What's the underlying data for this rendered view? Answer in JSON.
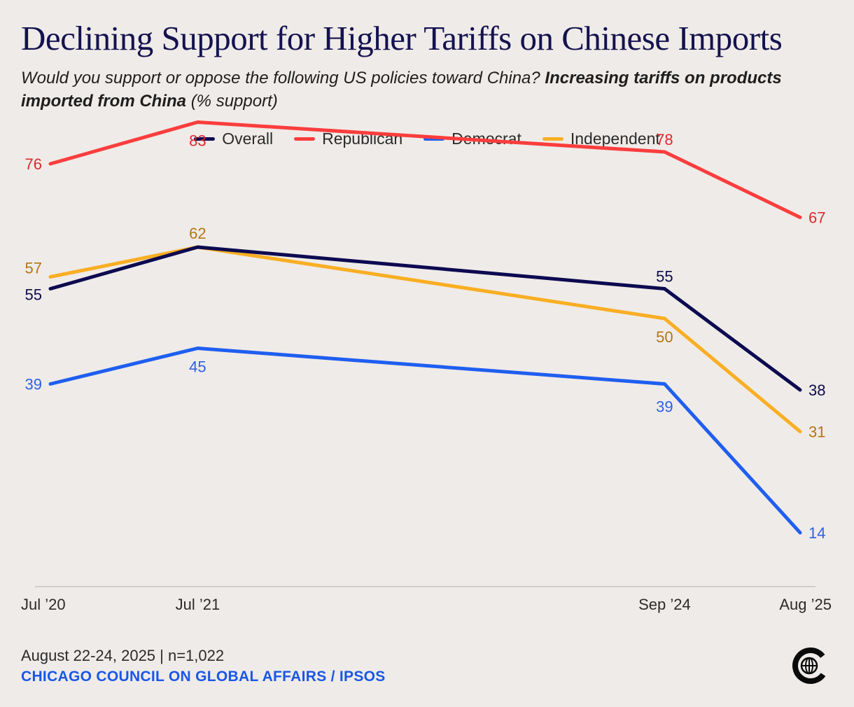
{
  "header": {
    "title": "Declining Support for Higher Tariffs on Chinese Imports",
    "subtitle_question": "Would you support or oppose the following US policies toward China?",
    "subtitle_bold": "Increasing tariffs on products imported from China",
    "subtitle_unit": "(% support)"
  },
  "footer": {
    "date": "August 22-24, 2025 | n=1,022",
    "source": "CHICAGO COUNCIL ON GLOBAL AFFAIRS / IPSOS",
    "logo_icon": "chicago-council-globe-logo"
  },
  "chart_data": {
    "type": "line",
    "title": "Declining Support for Higher Tariffs on Chinese Imports",
    "xlabel": "",
    "ylabel": "% support",
    "ylim": [
      0,
      100
    ],
    "grid": false,
    "legend_position": "top-center",
    "x": [
      "Jul ’20",
      "Jul ’21",
      "Sep ’24",
      "Aug ’25"
    ],
    "x_time": [
      2020.54,
      2021.54,
      2024.71,
      2025.63
    ],
    "series": [
      {
        "name": "Overall",
        "color": "#0c0a50",
        "label_color": "#0c0a50",
        "values": [
          55,
          62,
          55,
          38
        ]
      },
      {
        "name": "Republican",
        "color": "#fb3d3d",
        "label_color": "#e0282b",
        "values": [
          76,
          83,
          78,
          67
        ]
      },
      {
        "name": "Democrat",
        "color": "#1f5ef0",
        "label_color": "#2a62ea",
        "values": [
          39,
          45,
          39,
          14
        ]
      },
      {
        "name": "Independent",
        "color": "#f9ae23",
        "label_color": "#b5760e",
        "values": [
          57,
          62,
          50,
          31
        ]
      }
    ]
  }
}
